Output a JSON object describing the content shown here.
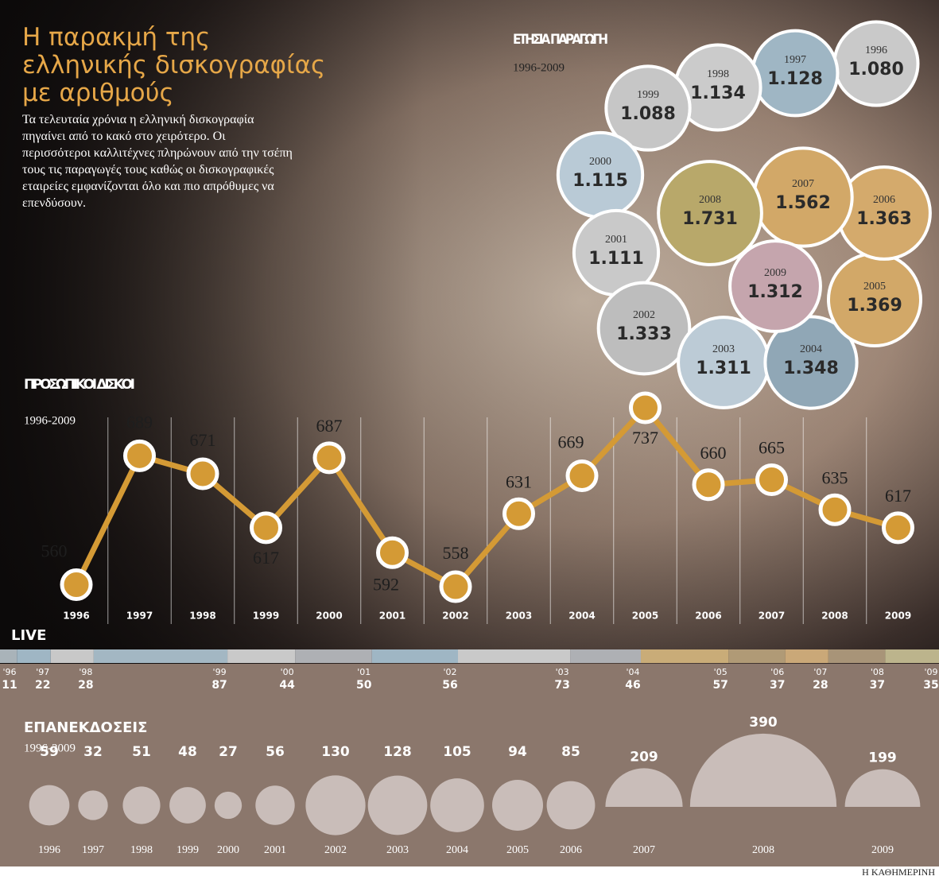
{
  "header": {
    "title": "Η παρακμή της ελληνικής δισκογραφίας με αριθμούς",
    "intro": "Τα τελευταία χρόνια η ελληνική δισκογραφία πηγαίνει από το κακό στο χειρότερο. Οι περισσότεροι καλλιτέχνες πληρώνουν από την τσέπη τους τις παραγωγές τους καθώς οι δισκογραφικές εταιρείες εμφανίζονται όλο και πιο απρόθυμες να επενδύσουν."
  },
  "chart_data": [
    {
      "type": "bubble",
      "title": "ΕΤΗΣΙΑ ΠΑΡΑΓΩΓΗ",
      "subtitle": "1996-2009",
      "categories": [
        "1996",
        "1997",
        "1998",
        "1999",
        "2000",
        "2001",
        "2002",
        "2003",
        "2004",
        "2005",
        "2006",
        "2007",
        "2008",
        "2009"
      ],
      "values": [
        1080,
        1128,
        1134,
        1088,
        1115,
        1111,
        1333,
        1311,
        1348,
        1369,
        1363,
        1562,
        1731,
        1312
      ],
      "value_labels": [
        "1.080",
        "1.128",
        "1.134",
        "1.088",
        "1.115",
        "1.111",
        "1.333",
        "1.311",
        "1.348",
        "1.369",
        "1.363",
        "1.562",
        "1.731",
        "1.312"
      ],
      "colors": [
        "#c9c9c9",
        "#9fb6c4",
        "#cbcbcb",
        "#c6c6c6",
        "#b9cad6",
        "#c9c9c9",
        "#bdbdbd",
        "#bccbd6",
        "#90a7b6",
        "#d2a868",
        "#d4aa6c",
        "#d2a868",
        "#b8a86a",
        "#c5a5ad"
      ]
    },
    {
      "type": "line",
      "title": "ΠΡΟΣΩΠΙΚΟΙ ΔΙΣΚΟΙ",
      "subtitle": "1996-2009",
      "categories": [
        "1996",
        "1997",
        "1998",
        "1999",
        "2000",
        "2001",
        "2002",
        "2003",
        "2004",
        "2005",
        "2006",
        "2007",
        "2008",
        "2009"
      ],
      "values": [
        560,
        689,
        671,
        617,
        687,
        592,
        558,
        631,
        669,
        737,
        660,
        665,
        635,
        617
      ],
      "color": "#d49a35"
    },
    {
      "type": "strip",
      "title": "LIVE",
      "categories": [
        "'96",
        "'97",
        "'98",
        "'99",
        "'00",
        "'01",
        "'02",
        "'03",
        "'04",
        "'05",
        "'06",
        "'07",
        "'08",
        "'09"
      ],
      "values": [
        11,
        22,
        28,
        87,
        44,
        50,
        56,
        73,
        46,
        57,
        37,
        28,
        37,
        35
      ],
      "colors": [
        "#a9b3b9",
        "#9fb6c4",
        "#c8c8c8",
        "#a3b7c3",
        "#c9c9c9",
        "#aeb0b4",
        "#9fb6c4",
        "#c9c9c9",
        "#aeb0b4",
        "#c9ac78",
        "#b09a76",
        "#caa878",
        "#a89478",
        "#bcb48c"
      ]
    },
    {
      "type": "half-bubble",
      "title": "ΕΠΑΝΕΚΔΟΣΕΙΣ",
      "subtitle": "1996-2009",
      "categories": [
        "1996",
        "1997",
        "1998",
        "1999",
        "2000",
        "2001",
        "2002",
        "2003",
        "2004",
        "2005",
        "2006",
        "2007",
        "2008",
        "2009"
      ],
      "values": [
        59,
        32,
        51,
        48,
        27,
        56,
        130,
        128,
        105,
        94,
        85,
        209,
        390,
        199
      ],
      "color": "#c9bdb9"
    }
  ],
  "footer": {
    "source": "Η ΚΑΘΗΜΕΡΙΝΗ"
  }
}
